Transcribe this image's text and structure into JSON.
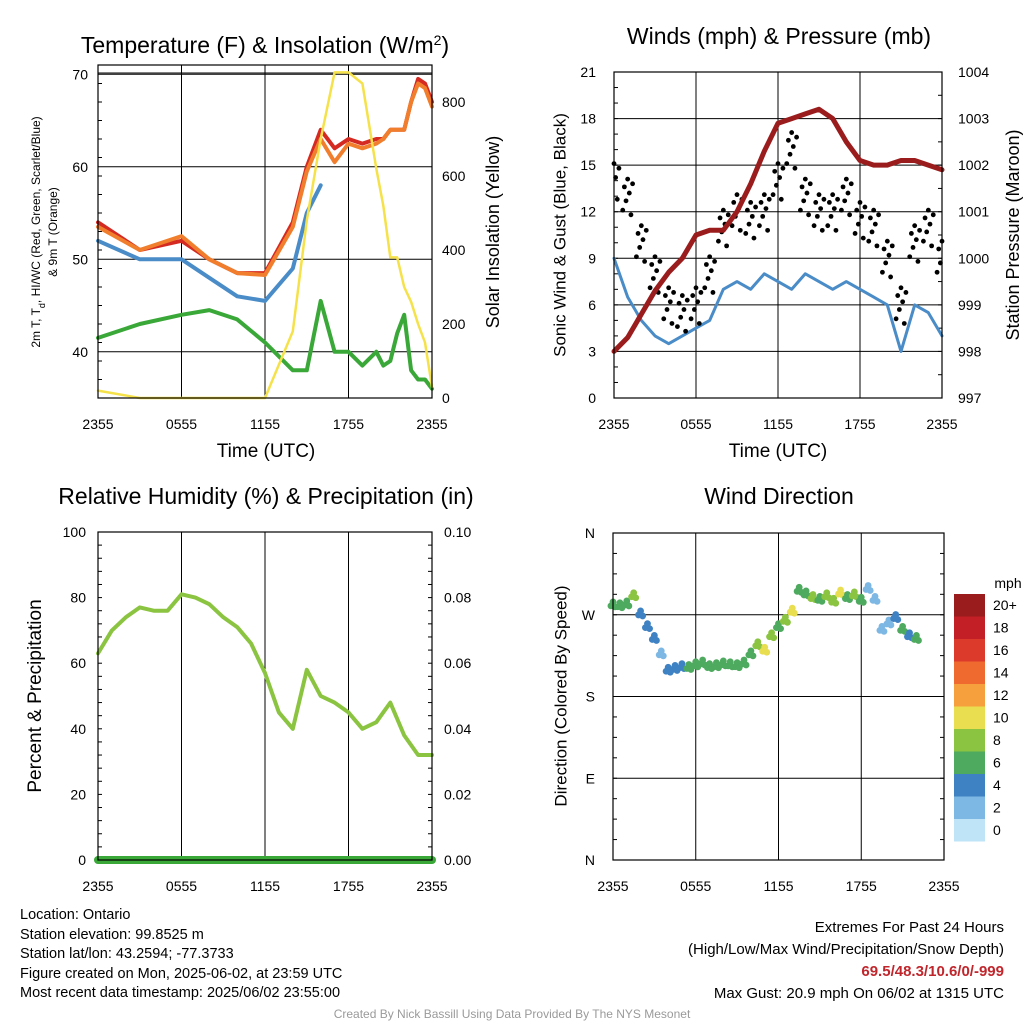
{
  "charts": {
    "temperature": {
      "title": "Temperature (F) & Insolation (W/m",
      "title_sup": "2",
      "title_end": ")",
      "ylabel_lines": [
        "2m T, T",
        "d",
        ", HI/WC (Red, Green, Scarlet/Blue)",
        "& 9m T (Orange)"
      ],
      "y2label": "Solar Insolation (Yellow)",
      "xlabel": "Time (UTC)"
    },
    "winds": {
      "title": "Winds (mph) & Pressure (mb)",
      "ylabel": "Sonic Wind & Gust (Blue, Black)",
      "y2label": "Station Pressure (Maroon)",
      "xlabel": "Time (UTC)"
    },
    "humidity": {
      "title": "Relative Humidity (%) & Precipitation (in)",
      "ylabel": "Percent & Precipitation"
    },
    "direction": {
      "title": "Wind Direction",
      "ylabel": "Direction (Colored By Speed)",
      "legend_title": "mph"
    }
  },
  "footer": {
    "location": "Location: Ontario",
    "elevation": "Station elevation: 99.8525 m",
    "latlon": "Station lat/lon: 43.2594; -77.3733",
    "created": "Figure created on Mon, 2025-06-02, at 23:59 UTC",
    "recent": "Most recent data timestamp: 2025/06/02 23:55:00",
    "extremes_title": "Extremes For Past 24 Hours",
    "extremes_sub": "(High/Low/Max Wind/Precipitation/Snow Depth)",
    "extremes_values": "69.5/48.3/10.6/0/-999",
    "max_gust": "Max Gust: 20.9 mph On 06/02 at 1315 UTC",
    "credit": "Created By Nick Bassill Using Data Provided By The NYS Mesonet"
  },
  "chart_data": [
    {
      "type": "line",
      "title": "Temperature (F) & Insolation (W/m2)",
      "xlabel": "Time (UTC)",
      "ylabel": "2m T, Td, HI/WC (Red, Green, Scarlet/Blue) & 9m T (Orange)",
      "y2label": "Solar Insolation (Yellow)",
      "x_ticks": [
        "2355",
        "0555",
        "1155",
        "1755",
        "2355"
      ],
      "x_hours": [
        0,
        3,
        6,
        8,
        10,
        12,
        14,
        15,
        16,
        17,
        18,
        19,
        20,
        20.5,
        21,
        21.5,
        22,
        22.5,
        23,
        23.5,
        24
      ],
      "ylim": [
        35,
        71
      ],
      "y_ticks": [
        40,
        50,
        60,
        70
      ],
      "y2lim": [
        0,
        900
      ],
      "y2_ticks": [
        0,
        200,
        400,
        600,
        800
      ],
      "grid": true,
      "series": [
        {
          "name": "2m T",
          "color": "#d42a22",
          "axis": "left",
          "values": [
            54,
            51,
            52,
            50,
            48.5,
            48.5,
            54,
            60,
            64,
            62,
            63,
            62.5,
            63,
            63,
            64,
            64,
            64,
            67,
            69.5,
            69,
            67
          ]
        },
        {
          "name": "9m T",
          "color": "#f07e2c",
          "axis": "left",
          "values": [
            53.5,
            51,
            52.5,
            50,
            48.5,
            48.3,
            53.5,
            59.5,
            63,
            60.5,
            62.5,
            62,
            62.5,
            63,
            64,
            64,
            64,
            67,
            69,
            68.5,
            66.5
          ]
        },
        {
          "name": "HI/WC",
          "color": "#4a8cc7",
          "axis": "left",
          "values": [
            52,
            50,
            50,
            48,
            46,
            45.5,
            49,
            55,
            58,
            null,
            null,
            null,
            null,
            null,
            null,
            null,
            null,
            null,
            null,
            null,
            null
          ]
        },
        {
          "name": "Td",
          "color": "#3aa838",
          "axis": "left",
          "values": [
            41.5,
            43,
            44,
            44.5,
            43.5,
            41,
            38,
            38,
            45.5,
            40,
            40,
            38.5,
            40,
            38.5,
            39,
            42,
            44,
            38,
            37,
            37,
            36
          ]
        },
        {
          "name": "Solar Insolation",
          "color": "#f5e24a",
          "axis": "right",
          "values": [
            20,
            0,
            0,
            0,
            0,
            0,
            180,
            480,
            700,
            880,
            880,
            850,
            620,
            520,
            380,
            380,
            300,
            260,
            200,
            150,
            30
          ]
        }
      ]
    },
    {
      "type": "line",
      "title": "Winds (mph) & Pressure (mb)",
      "xlabel": "Time (UTC)",
      "ylabel": "Sonic Wind & Gust (Blue, Black)",
      "y2label": "Station Pressure (Maroon)",
      "x_ticks": [
        "2355",
        "0555",
        "1155",
        "1755",
        "2355"
      ],
      "x_hours": [
        0,
        1,
        2,
        3,
        4,
        5,
        6,
        7,
        8,
        9,
        10,
        11,
        12,
        13,
        14,
        15,
        16,
        17,
        18,
        19,
        20,
        21,
        22,
        23,
        24
      ],
      "ylim": [
        0,
        21
      ],
      "y_ticks": [
        0,
        3,
        6,
        9,
        12,
        15,
        18,
        21
      ],
      "y2lim": [
        997,
        1004
      ],
      "y2_ticks": [
        997,
        998,
        999,
        1000,
        1001,
        1002,
        1003,
        1004
      ],
      "grid": true,
      "series": [
        {
          "name": "Sonic Wind",
          "color": "#4a8cc7",
          "axis": "left",
          "values": [
            9,
            6.5,
            5,
            4,
            3.5,
            4,
            4.5,
            5,
            7,
            7.5,
            7,
            8,
            7.5,
            7,
            8,
            7.5,
            7,
            7.5,
            7,
            6.5,
            6,
            3,
            6,
            5.5,
            4
          ]
        },
        {
          "name": "Gust",
          "color": "#000000",
          "axis": "left",
          "values": [
            14,
            13,
            10,
            8,
            6,
            5.5,
            6,
            8,
            11,
            12,
            11.5,
            12,
            14,
            16,
            13,
            12,
            12,
            13,
            11.5,
            11,
            9,
            6,
            10,
            11,
            9
          ]
        },
        {
          "name": "Station Pressure",
          "color": "#9b1c1c",
          "axis": "right",
          "values": [
            998.0,
            998.3,
            998.8,
            999.3,
            999.7,
            1000.0,
            1000.5,
            1000.6,
            1000.6,
            1001.0,
            1001.6,
            1002.3,
            1002.9,
            1003.0,
            1003.1,
            1003.2,
            1003.0,
            1002.5,
            1002.1,
            1002.0,
            1002.0,
            1002.1,
            1002.1,
            1002.0,
            1001.9
          ]
        }
      ]
    },
    {
      "type": "line",
      "title": "Relative Humidity (%) & Precipitation (in)",
      "ylabel": "Percent & Precipitation",
      "x_ticks": [
        "2355",
        "0555",
        "1155",
        "1755",
        "2355"
      ],
      "x_hours": [
        0,
        1,
        2,
        3,
        4,
        5,
        6,
        7,
        8,
        9,
        10,
        11,
        12,
        13,
        14,
        15,
        16,
        17,
        18,
        19,
        20,
        21,
        22,
        23,
        24
      ],
      "ylim": [
        0,
        100
      ],
      "y_ticks": [
        0,
        20,
        40,
        60,
        80,
        100
      ],
      "y2lim": [
        0,
        0.1
      ],
      "y2_ticks": [
        "0.00",
        "0.02",
        "0.04",
        "0.06",
        "0.08",
        "0.10"
      ],
      "grid": true,
      "series": [
        {
          "name": "Relative Humidity",
          "color": "#8bc440",
          "axis": "left",
          "values": [
            63,
            70,
            74,
            77,
            76,
            76,
            81,
            80,
            78,
            74,
            71,
            66,
            57,
            45,
            40,
            58,
            50,
            48,
            45,
            40,
            42,
            48,
            38,
            32,
            32
          ]
        },
        {
          "name": "Precipitation",
          "color": "#3aa838",
          "axis": "right",
          "values": [
            0,
            0,
            0,
            0,
            0,
            0,
            0,
            0,
            0,
            0,
            0,
            0,
            0,
            0,
            0,
            0,
            0,
            0,
            0,
            0,
            0,
            0,
            0,
            0,
            0
          ]
        }
      ]
    },
    {
      "type": "scatter",
      "title": "Wind Direction",
      "ylabel": "Direction (Colored By Speed)",
      "x_ticks": [
        "2355",
        "0555",
        "1155",
        "1755",
        "2355"
      ],
      "y_ticks": [
        "N",
        "E",
        "S",
        "W",
        "N"
      ],
      "ylim": [
        0,
        360
      ],
      "grid": true,
      "legend_title": "mph",
      "legend_position": "right",
      "color_levels": [
        "20+",
        "18",
        "16",
        "14",
        "12",
        "10",
        "8",
        "6",
        "4",
        "2",
        "0"
      ],
      "colors": [
        "#9b1c1c",
        "#c21f26",
        "#dc3a2b",
        "#ef6a2f",
        "#f5a03c",
        "#e9de50",
        "#8bc440",
        "#4daa5e",
        "#3f82c4",
        "#7db7e3",
        "#bfe4f7"
      ],
      "points": [
        {
          "x": 0,
          "dir": 282,
          "speed": 7
        },
        {
          "x": 0.5,
          "dir": 281,
          "speed": 6
        },
        {
          "x": 1.0,
          "dir": 283,
          "speed": 7
        },
        {
          "x": 1.5,
          "dir": 292,
          "speed": 8
        },
        {
          "x": 2.0,
          "dir": 272,
          "speed": 5
        },
        {
          "x": 2.5,
          "dir": 258,
          "speed": 4
        },
        {
          "x": 3.0,
          "dir": 245,
          "speed": 4
        },
        {
          "x": 3.5,
          "dir": 228,
          "speed": 3
        },
        {
          "x": 4.0,
          "dir": 210,
          "speed": 4
        },
        {
          "x": 4.5,
          "dir": 212,
          "speed": 4
        },
        {
          "x": 5.0,
          "dir": 214,
          "speed": 5
        },
        {
          "x": 5.5,
          "dir": 213,
          "speed": 6
        },
        {
          "x": 6.0,
          "dir": 216,
          "speed": 6
        },
        {
          "x": 6.5,
          "dir": 218,
          "speed": 7
        },
        {
          "x": 7.0,
          "dir": 214,
          "speed": 6
        },
        {
          "x": 7.5,
          "dir": 215,
          "speed": 6
        },
        {
          "x": 8.0,
          "dir": 217,
          "speed": 7
        },
        {
          "x": 8.5,
          "dir": 216,
          "speed": 7
        },
        {
          "x": 9.0,
          "dir": 215,
          "speed": 6
        },
        {
          "x": 9.5,
          "dir": 218,
          "speed": 6
        },
        {
          "x": 10.0,
          "dir": 228,
          "speed": 7
        },
        {
          "x": 10.5,
          "dir": 238,
          "speed": 8
        },
        {
          "x": 11.0,
          "dir": 232,
          "speed": 10
        },
        {
          "x": 11.5,
          "dir": 248,
          "speed": 9
        },
        {
          "x": 12.0,
          "dir": 258,
          "speed": 7
        },
        {
          "x": 12.5,
          "dir": 265,
          "speed": 8
        },
        {
          "x": 13.0,
          "dir": 275,
          "speed": 10
        },
        {
          "x": 13.5,
          "dir": 298,
          "speed": 6
        },
        {
          "x": 14.0,
          "dir": 294,
          "speed": 7
        },
        {
          "x": 14.5,
          "dir": 290,
          "speed": 8
        },
        {
          "x": 15.0,
          "dir": 288,
          "speed": 7
        },
        {
          "x": 15.5,
          "dir": 292,
          "speed": 9
        },
        {
          "x": 16.0,
          "dir": 286,
          "speed": 8
        },
        {
          "x": 16.5,
          "dir": 295,
          "speed": 10
        },
        {
          "x": 17.0,
          "dir": 290,
          "speed": 6
        },
        {
          "x": 17.5,
          "dir": 293,
          "speed": 8
        },
        {
          "x": 18.0,
          "dir": 287,
          "speed": 7
        },
        {
          "x": 18.5,
          "dir": 300,
          "speed": 2
        },
        {
          "x": 19.0,
          "dir": 288,
          "speed": 3
        },
        {
          "x": 19.5,
          "dir": 255,
          "speed": 2
        },
        {
          "x": 20.0,
          "dir": 262,
          "speed": 3
        },
        {
          "x": 20.5,
          "dir": 268,
          "speed": 5
        },
        {
          "x": 21.0,
          "dir": 255,
          "speed": 6
        },
        {
          "x": 21.5,
          "dir": 248,
          "speed": 4
        },
        {
          "x": 22.0,
          "dir": 245,
          "speed": 7
        }
      ]
    }
  ]
}
